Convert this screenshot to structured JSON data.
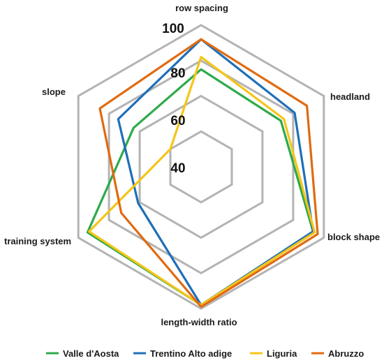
{
  "chart_data": {
    "type": "radar",
    "axes": [
      "row spacing",
      "headland",
      "block shape",
      "length-width ratio",
      "training system",
      "slope"
    ],
    "rlim": [
      20,
      100
    ],
    "rings": [
      40,
      60,
      80,
      100
    ],
    "tick_labels": [
      "40",
      "60",
      "80",
      "100"
    ],
    "series": [
      {
        "name": "Valle d'Aosta",
        "color": "#2eaa4a",
        "values": [
          75,
          72,
          93,
          98,
          94,
          64
        ]
      },
      {
        "name": "Trentino Alto adige",
        "color": "#1f6fb8",
        "values": [
          92,
          81,
          93,
          98,
          61,
          74
        ]
      },
      {
        "name": "Liguria",
        "color": "#f5c518",
        "values": [
          82,
          74,
          94,
          98,
          93,
          40
        ]
      },
      {
        "name": "Abruzzo",
        "color": "#e06a10",
        "values": [
          92,
          89,
          96,
          99,
          72,
          86
        ]
      }
    ],
    "grid_color": "#b3b3b3",
    "legend_position": "bottom"
  }
}
